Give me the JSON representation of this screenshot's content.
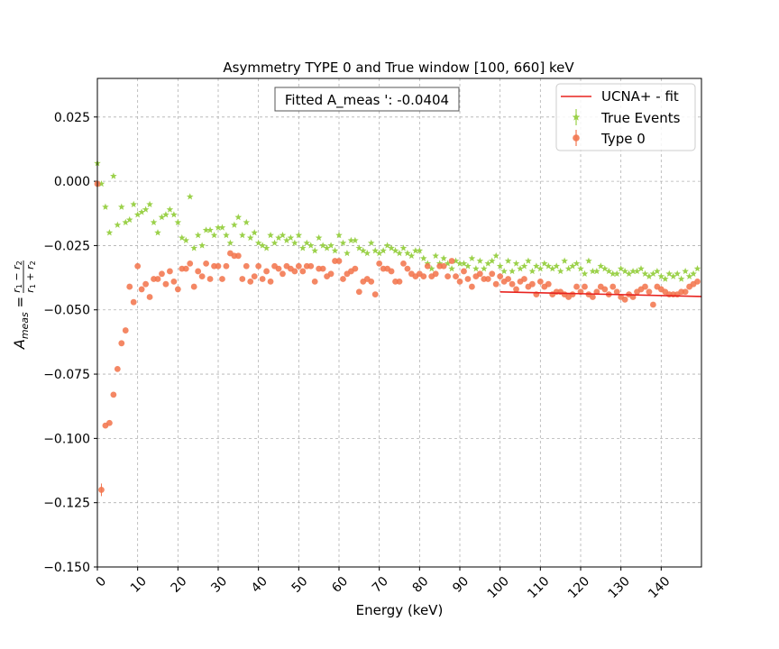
{
  "chart_data": {
    "type": "scatter",
    "title": "Asymmetry TYPE 0 and True  window [100, 660] keV",
    "xlabel": "Energy (keV)",
    "ylabel": "A_meas = (r1 - r2) / (r1 + r2)",
    "xlim": [
      0,
      150
    ],
    "ylim": [
      -0.15,
      0.04
    ],
    "x_ticks": [
      0,
      10,
      20,
      30,
      40,
      50,
      60,
      70,
      80,
      90,
      100,
      110,
      120,
      130,
      140
    ],
    "x_tick_labels": [
      "0",
      "10",
      "20",
      "30",
      "40",
      "50",
      "60",
      "70",
      "80",
      "90",
      "100",
      "110",
      "120",
      "130",
      "140"
    ],
    "y_ticks": [
      0.025,
      0.0,
      -0.025,
      -0.05,
      -0.075,
      -0.1,
      -0.125,
      -0.15
    ],
    "y_tick_labels": [
      "0.025",
      "0.000",
      "−0.025",
      "−0.050",
      "−0.075",
      "−0.100",
      "−0.125",
      "−0.150"
    ],
    "grid": true,
    "legend_position": "top-right",
    "annotation": "Fitted A_meas ': -0.0404",
    "colors": {
      "fit": "#e8231f",
      "true_events": "#9bd14a",
      "type0": "#f2764f"
    },
    "fit_line": {
      "name": "UCNA+ - fit",
      "x": [
        100,
        150
      ],
      "y": [
        -0.043,
        -0.0448
      ]
    },
    "series": [
      {
        "name": "True Events",
        "marker": "star",
        "x": [
          0,
          1,
          2,
          3,
          4,
          5,
          6,
          7,
          8,
          9,
          10,
          11,
          12,
          13,
          14,
          15,
          16,
          17,
          18,
          19,
          20,
          21,
          22,
          23,
          24,
          25,
          26,
          27,
          28,
          29,
          30,
          31,
          32,
          33,
          34,
          35,
          36,
          37,
          38,
          39,
          40,
          41,
          42,
          43,
          44,
          45,
          46,
          47,
          48,
          49,
          50,
          51,
          52,
          53,
          54,
          55,
          56,
          57,
          58,
          59,
          60,
          61,
          62,
          63,
          64,
          65,
          66,
          67,
          68,
          69,
          70,
          71,
          72,
          73,
          74,
          75,
          76,
          77,
          78,
          79,
          80,
          81,
          82,
          83,
          84,
          85,
          86,
          87,
          88,
          89,
          90,
          91,
          92,
          93,
          94,
          95,
          96,
          97,
          98,
          99,
          100,
          101,
          102,
          103,
          104,
          105,
          106,
          107,
          108,
          109,
          110,
          111,
          112,
          113,
          114,
          115,
          116,
          117,
          118,
          119,
          120,
          121,
          122,
          123,
          124,
          125,
          126,
          127,
          128,
          129,
          130,
          131,
          132,
          133,
          134,
          135,
          136,
          137,
          138,
          139,
          140,
          141,
          142,
          143,
          144,
          145,
          146,
          147,
          148,
          149
        ],
        "y": [
          0.007,
          -0.001,
          -0.01,
          -0.02,
          0.002,
          -0.017,
          -0.01,
          -0.016,
          -0.015,
          -0.009,
          -0.013,
          -0.012,
          -0.011,
          -0.009,
          -0.016,
          -0.02,
          -0.014,
          -0.013,
          -0.011,
          -0.013,
          -0.016,
          -0.022,
          -0.023,
          -0.006,
          -0.026,
          -0.021,
          -0.025,
          -0.019,
          -0.019,
          -0.021,
          -0.018,
          -0.018,
          -0.021,
          -0.024,
          -0.017,
          -0.014,
          -0.021,
          -0.016,
          -0.022,
          -0.02,
          -0.024,
          -0.025,
          -0.026,
          -0.021,
          -0.024,
          -0.022,
          -0.021,
          -0.023,
          -0.022,
          -0.024,
          -0.021,
          -0.026,
          -0.024,
          -0.025,
          -0.027,
          -0.022,
          -0.025,
          -0.026,
          -0.025,
          -0.027,
          -0.021,
          -0.024,
          -0.028,
          -0.023,
          -0.023,
          -0.026,
          -0.027,
          -0.028,
          -0.024,
          -0.027,
          -0.028,
          -0.027,
          -0.025,
          -0.026,
          -0.027,
          -0.028,
          -0.026,
          -0.028,
          -0.029,
          -0.027,
          -0.027,
          -0.03,
          -0.032,
          -0.034,
          -0.029,
          -0.032,
          -0.03,
          -0.032,
          -0.034,
          -0.031,
          -0.032,
          -0.032,
          -0.033,
          -0.03,
          -0.034,
          -0.031,
          -0.034,
          -0.032,
          -0.031,
          -0.029,
          -0.033,
          -0.035,
          -0.031,
          -0.035,
          -0.032,
          -0.034,
          -0.033,
          -0.031,
          -0.035,
          -0.033,
          -0.034,
          -0.032,
          -0.033,
          -0.034,
          -0.033,
          -0.035,
          -0.031,
          -0.034,
          -0.033,
          -0.032,
          -0.034,
          -0.036,
          -0.031,
          -0.035,
          -0.035,
          -0.033,
          -0.034,
          -0.035,
          -0.036,
          -0.036,
          -0.034,
          -0.035,
          -0.036,
          -0.035,
          -0.035,
          -0.034,
          -0.036,
          -0.037,
          -0.036,
          -0.035,
          -0.037,
          -0.038,
          -0.036,
          -0.037,
          -0.036,
          -0.038,
          -0.035,
          -0.037,
          -0.036,
          -0.034
        ]
      },
      {
        "name": "Type 0",
        "marker": "circle",
        "x": [
          0,
          1,
          2,
          3,
          4,
          5,
          6,
          7,
          8,
          9,
          10,
          11,
          12,
          13,
          14,
          15,
          16,
          17,
          18,
          19,
          20,
          21,
          22,
          23,
          24,
          25,
          26,
          27,
          28,
          29,
          30,
          31,
          32,
          33,
          34,
          35,
          36,
          37,
          38,
          39,
          40,
          41,
          42,
          43,
          44,
          45,
          46,
          47,
          48,
          49,
          50,
          51,
          52,
          53,
          54,
          55,
          56,
          57,
          58,
          59,
          60,
          61,
          62,
          63,
          64,
          65,
          66,
          67,
          68,
          69,
          70,
          71,
          72,
          73,
          74,
          75,
          76,
          77,
          78,
          79,
          80,
          81,
          82,
          83,
          84,
          85,
          86,
          87,
          88,
          89,
          90,
          91,
          92,
          93,
          94,
          95,
          96,
          97,
          98,
          99,
          100,
          101,
          102,
          103,
          104,
          105,
          106,
          107,
          108,
          109,
          110,
          111,
          112,
          113,
          114,
          115,
          116,
          117,
          118,
          119,
          120,
          121,
          122,
          123,
          124,
          125,
          126,
          127,
          128,
          129,
          130,
          131,
          132,
          133,
          134,
          135,
          136,
          137,
          138,
          139,
          140,
          141,
          142,
          143,
          144,
          145,
          146,
          147,
          148,
          149
        ],
        "y": [
          -0.001,
          -0.12,
          -0.095,
          -0.094,
          -0.083,
          -0.073,
          -0.063,
          -0.058,
          -0.041,
          -0.047,
          -0.033,
          -0.042,
          -0.04,
          -0.045,
          -0.038,
          -0.038,
          -0.036,
          -0.04,
          -0.035,
          -0.039,
          -0.042,
          -0.034,
          -0.034,
          -0.032,
          -0.041,
          -0.035,
          -0.037,
          -0.032,
          -0.038,
          -0.033,
          -0.033,
          -0.038,
          -0.033,
          -0.028,
          -0.029,
          -0.029,
          -0.038,
          -0.033,
          -0.039,
          -0.037,
          -0.033,
          -0.038,
          -0.035,
          -0.039,
          -0.033,
          -0.034,
          -0.036,
          -0.033,
          -0.034,
          -0.035,
          -0.033,
          -0.035,
          -0.033,
          -0.033,
          -0.039,
          -0.034,
          -0.034,
          -0.037,
          -0.036,
          -0.031,
          -0.031,
          -0.038,
          -0.036,
          -0.035,
          -0.034,
          -0.043,
          -0.039,
          -0.038,
          -0.039,
          -0.044,
          -0.032,
          -0.034,
          -0.034,
          -0.035,
          -0.039,
          -0.039,
          -0.032,
          -0.034,
          -0.036,
          -0.037,
          -0.036,
          -0.037,
          -0.033,
          -0.037,
          -0.036,
          -0.033,
          -0.033,
          -0.037,
          -0.031,
          -0.037,
          -0.039,
          -0.035,
          -0.038,
          -0.041,
          -0.037,
          -0.036,
          -0.038,
          -0.038,
          -0.036,
          -0.04,
          -0.037,
          -0.039,
          -0.038,
          -0.04,
          -0.042,
          -0.039,
          -0.038,
          -0.041,
          -0.04,
          -0.044,
          -0.039,
          -0.041,
          -0.04,
          -0.044,
          -0.043,
          -0.043,
          -0.044,
          -0.045,
          -0.044,
          -0.041,
          -0.043,
          -0.041,
          -0.044,
          -0.045,
          -0.043,
          -0.041,
          -0.042,
          -0.044,
          -0.041,
          -0.043,
          -0.045,
          -0.046,
          -0.044,
          -0.045,
          -0.043,
          -0.042,
          -0.041,
          -0.043,
          -0.048,
          -0.041,
          -0.042,
          -0.043,
          -0.044,
          -0.044,
          -0.044,
          -0.043,
          -0.043,
          -0.041,
          -0.04,
          -0.039
        ]
      }
    ]
  },
  "legend": {
    "fit_label": "UCNA+ - fit",
    "true_label": "True Events",
    "type0_label": "Type 0"
  }
}
